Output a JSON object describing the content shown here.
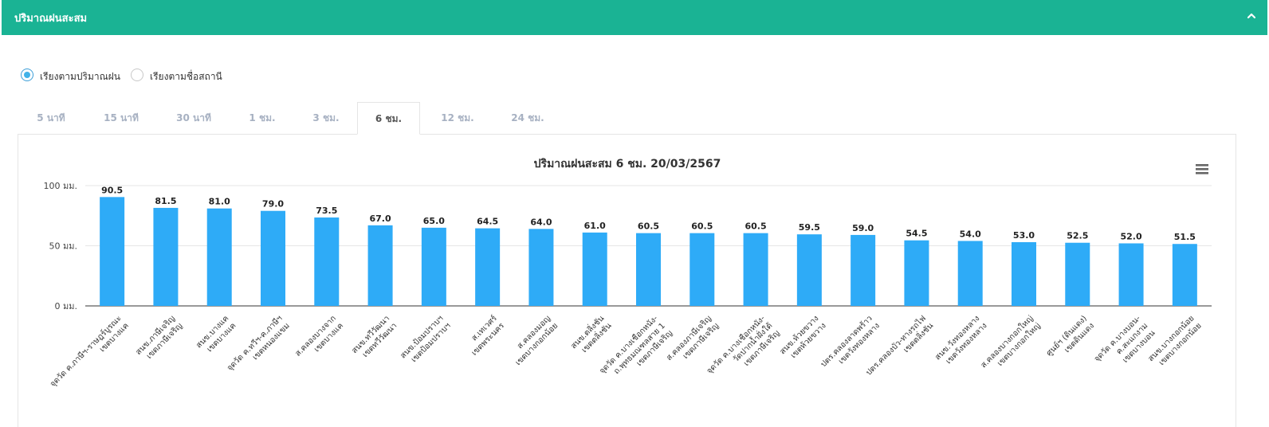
{
  "header": {
    "title": "ปริมาณฝนสะสม",
    "toggle_icon": "chevron-up-icon",
    "color": "#1ab394"
  },
  "sort_options": [
    {
      "label": "เรียงตามปริมาณฝน",
      "checked": true
    },
    {
      "label": "เรียงตามชื่อสถานี",
      "checked": false
    }
  ],
  "tabs": [
    {
      "label": "5 นาที",
      "active": false
    },
    {
      "label": "15 นาที",
      "active": false
    },
    {
      "label": "30 นาที",
      "active": false
    },
    {
      "label": "1 ชม.",
      "active": false
    },
    {
      "label": "3 ชม.",
      "active": false
    },
    {
      "label": "6 ชม.",
      "active": true
    },
    {
      "label": "12 ชม.",
      "active": false
    },
    {
      "label": "24 ชม.",
      "active": false
    }
  ],
  "chart_data": {
    "type": "bar",
    "title": "ปริมาณฝนสะสม 6 ชม. 20/03/2567",
    "menu_icon": "hamburger-menu-icon",
    "bar_color": "#2eabf7",
    "ylim": [
      0,
      100
    ],
    "yticks": [
      {
        "value": 0,
        "label": "0 มม."
      },
      {
        "value": 50,
        "label": "50 มม."
      },
      {
        "value": 100,
        "label": "100 มม."
      }
    ],
    "grid": true,
    "categories": [
      [
        "จุดวัด ค.ภาษีฯ-ราษฎร์บูรณะ",
        "เขตบางแค"
      ],
      [
        "สนข.ภาษีเจริญ",
        "เขตภาษีเจริญ"
      ],
      [
        "สนข.บางแค",
        "เขตบางแค"
      ],
      [
        "จุดวัด ค.ทวีฯ-ค.ภาษีฯ",
        "เขตหนองแขม"
      ],
      [
        "ส.คลองบางจาก",
        "เขตบางแค"
      ],
      [
        "สนข.ทวีวัฒนา",
        "เขตทวีวัฒนา"
      ],
      [
        "สนข.ป้อมปราบฯ",
        "เขตป้อมปราบฯ"
      ],
      [
        "ส.เทเวศร์",
        "เขตพระนคร"
      ],
      [
        "ส.คลองมอญ",
        "เขตบางกอกน้อย"
      ],
      [
        "สนข.ตลิ่งชัน",
        "เขตตลิ่งชัน"
      ],
      [
        "จุดวัด ค.บางเชือกหนัง-",
        "ถ.พุทธมณฑลสาย 1",
        "เขตภาษีเจริญ"
      ],
      [
        "ส.คลองภาษีเจริญ",
        "เขตภาษีเจริญ"
      ],
      [
        "จุดวัด ค.บางเชือกหนัง-",
        "วัดปากน้ำฝั่งใต้",
        "เขตภาษีเจริญ"
      ],
      [
        "สนข.ห้วยขวาง",
        "เขตห้วยขวาง"
      ],
      [
        "ปตร.คลองลาดพร้าว",
        "เขตวังทองหลาง"
      ],
      [
        "ปตร.คลองบัว-ทางรถไฟ",
        "เขตตลิ่งชัน"
      ],
      [
        "สนข.วังทองหลาง",
        "เขตวังทองหลาง"
      ],
      [
        "ส.คลองบางกอกใหญ่",
        "เขตบางกอกใหญ่"
      ],
      [
        "ศูนย์ฯ (ดินแดง)",
        "เขตดินแดง"
      ],
      [
        "จุดวัด ค.บางบอน-",
        "ค.สะแกงาม",
        "เขตบางบอน"
      ],
      [
        "สนข.บางกอกน้อย",
        "เขตบางกอกน้อย"
      ]
    ],
    "values": [
      90.5,
      81.5,
      81.0,
      79.0,
      73.5,
      67.0,
      65.0,
      64.5,
      64.0,
      61.0,
      60.5,
      60.5,
      60.5,
      59.5,
      59.0,
      54.5,
      54.0,
      53.0,
      52.5,
      52.0,
      51.5
    ],
    "data_labels": [
      "90.5",
      "81.5",
      "81.0",
      "79.0",
      "73.5",
      "67.0",
      "65.0",
      "64.5",
      "64.0",
      "61.0",
      "60.5",
      "60.5",
      "60.5",
      "59.5",
      "59.0",
      "54.5",
      "54.0",
      "53.0",
      "52.5",
      "52.0",
      "51.5"
    ]
  }
}
